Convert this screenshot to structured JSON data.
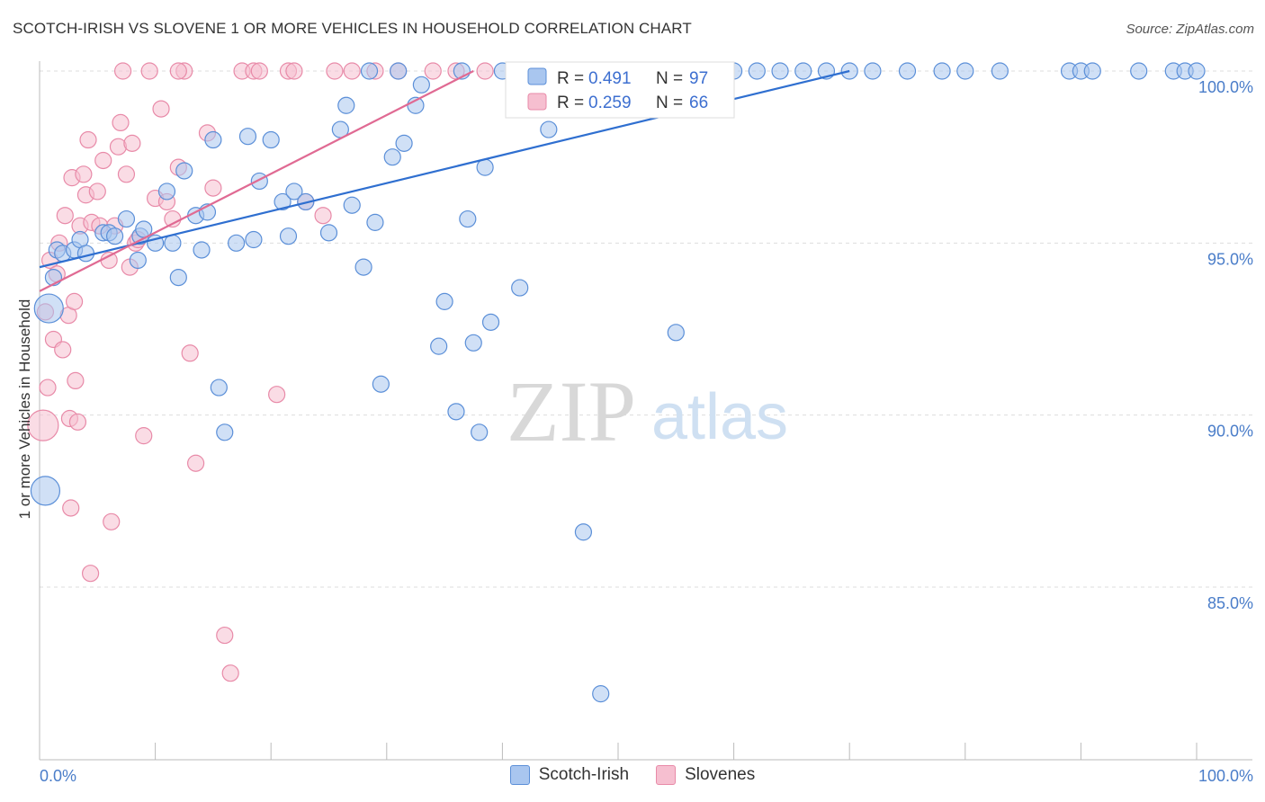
{
  "header": {
    "title": "SCOTCH-IRISH VS SLOVENE 1 OR MORE VEHICLES IN HOUSEHOLD CORRELATION CHART",
    "source": "Source: ZipAtlas.com"
  },
  "watermark": {
    "zip": "ZIP",
    "atlas": "atlas"
  },
  "colors": {
    "scotch_fill": "#a9c6ef",
    "scotch_stroke": "#5b8fd8",
    "scotch_line": "#2f6fd0",
    "slovene_fill": "#f6bfd0",
    "slovene_stroke": "#e88aa8",
    "slovene_line": "#e06a93",
    "grid": "#dddddd",
    "axis": "#bbbbbb"
  },
  "chart_data": {
    "type": "scatter",
    "title": "SCOTCH-IRISH VS SLOVENE 1 OR MORE VEHICLES IN HOUSEHOLD CORRELATION CHART",
    "xlabel": "",
    "ylabel": "1 or more Vehicles in Household",
    "xlim": [
      0,
      100
    ],
    "ylim": [
      80.5,
      100.5
    ],
    "x_tick_labels": [
      "0.0%",
      "100.0%"
    ],
    "y_ticks": [
      100,
      95,
      90,
      85
    ],
    "y_tick_labels": [
      "100.0%",
      "95.0%",
      "90.0%",
      "85.0%"
    ],
    "legend": {
      "position": "top-center",
      "entries": [
        {
          "r_label": "R =",
          "r_value": "0.491",
          "n_label": "N =",
          "n_value": "97"
        },
        {
          "r_label": "R =",
          "r_value": "0.259",
          "n_label": "N =",
          "n_value": "66"
        }
      ]
    },
    "series": [
      {
        "name": "Scotch-Irish",
        "trend": [
          [
            0,
            94.3
          ],
          [
            70,
            100
          ]
        ],
        "points": [
          [
            0.5,
            87.8
          ],
          [
            0.8,
            93.1
          ],
          [
            1.2,
            94.0
          ],
          [
            1.5,
            94.8
          ],
          [
            2.0,
            94.7
          ],
          [
            3.0,
            94.8
          ],
          [
            3.5,
            95.1
          ],
          [
            4.0,
            94.7
          ],
          [
            5.5,
            95.3
          ],
          [
            6.0,
            95.3
          ],
          [
            6.5,
            95.2
          ],
          [
            7.5,
            95.7
          ],
          [
            8.5,
            94.5
          ],
          [
            8.7,
            95.2
          ],
          [
            9.0,
            95.4
          ],
          [
            10.0,
            95.0
          ],
          [
            11.0,
            96.5
          ],
          [
            11.5,
            95.0
          ],
          [
            12.0,
            94.0
          ],
          [
            12.5,
            97.1
          ],
          [
            13.5,
            95.8
          ],
          [
            14.0,
            94.8
          ],
          [
            14.5,
            95.9
          ],
          [
            15.0,
            98.0
          ],
          [
            15.5,
            90.8
          ],
          [
            16.0,
            89.5
          ],
          [
            17.0,
            95.0
          ],
          [
            18.0,
            98.1
          ],
          [
            18.5,
            95.1
          ],
          [
            19.0,
            96.8
          ],
          [
            20.0,
            98.0
          ],
          [
            21.0,
            96.2
          ],
          [
            21.5,
            95.2
          ],
          [
            22.0,
            96.5
          ],
          [
            23.0,
            96.2
          ],
          [
            25.0,
            95.3
          ],
          [
            26.0,
            98.3
          ],
          [
            26.5,
            99.0
          ],
          [
            27.0,
            96.1
          ],
          [
            28.0,
            94.3
          ],
          [
            29.0,
            95.6
          ],
          [
            29.5,
            90.9
          ],
          [
            30.5,
            97.5
          ],
          [
            31.5,
            97.9
          ],
          [
            32.5,
            99.0
          ],
          [
            33.0,
            99.6
          ],
          [
            34.5,
            92.0
          ],
          [
            35.0,
            93.3
          ],
          [
            36.0,
            90.1
          ],
          [
            37.0,
            95.7
          ],
          [
            37.5,
            92.1
          ],
          [
            38.0,
            89.5
          ],
          [
            38.5,
            97.2
          ],
          [
            39.0,
            92.7
          ],
          [
            40.0,
            100
          ],
          [
            41.5,
            93.7
          ],
          [
            44.0,
            98.3
          ],
          [
            45.5,
            98.9
          ],
          [
            46.0,
            100
          ],
          [
            47.0,
            86.6
          ],
          [
            47.5,
            100
          ],
          [
            48.0,
            100
          ],
          [
            48.5,
            81.9
          ],
          [
            49.0,
            100
          ],
          [
            50.0,
            100
          ],
          [
            51.0,
            100
          ],
          [
            52.0,
            100
          ],
          [
            53.0,
            100
          ],
          [
            54.5,
            100
          ],
          [
            55.0,
            92.4
          ],
          [
            56.0,
            100
          ],
          [
            57.0,
            100
          ],
          [
            58.0,
            100
          ],
          [
            59.0,
            100
          ],
          [
            60.0,
            100
          ],
          [
            62.0,
            100
          ],
          [
            64.0,
            100
          ],
          [
            66.0,
            100
          ],
          [
            68.0,
            100
          ],
          [
            70.0,
            100
          ],
          [
            72.0,
            100
          ],
          [
            75.0,
            100
          ],
          [
            78.0,
            100
          ],
          [
            80.0,
            100
          ],
          [
            83.0,
            100
          ],
          [
            89.0,
            100
          ],
          [
            90.0,
            100
          ],
          [
            91.0,
            100
          ],
          [
            95.0,
            100
          ],
          [
            98.0,
            100
          ],
          [
            99.0,
            100
          ],
          [
            100.0,
            100
          ],
          [
            36.5,
            100
          ],
          [
            41.0,
            100
          ],
          [
            43.0,
            100
          ],
          [
            31.0,
            100
          ],
          [
            28.5,
            100
          ]
        ]
      },
      {
        "name": "Slovenes",
        "trend": [
          [
            0,
            93.6
          ],
          [
            37.5,
            100
          ]
        ],
        "points": [
          [
            0.3,
            89.7
          ],
          [
            0.5,
            93.0
          ],
          [
            0.7,
            90.8
          ],
          [
            0.9,
            94.5
          ],
          [
            1.2,
            92.2
          ],
          [
            1.5,
            94.1
          ],
          [
            1.7,
            95.0
          ],
          [
            2.0,
            91.9
          ],
          [
            2.2,
            95.8
          ],
          [
            2.5,
            92.9
          ],
          [
            2.6,
            89.9
          ],
          [
            2.7,
            87.3
          ],
          [
            2.8,
            96.9
          ],
          [
            3.0,
            93.3
          ],
          [
            3.1,
            91.0
          ],
          [
            3.3,
            89.8
          ],
          [
            3.5,
            95.5
          ],
          [
            3.8,
            97.0
          ],
          [
            4.0,
            96.4
          ],
          [
            4.2,
            98.0
          ],
          [
            4.4,
            85.4
          ],
          [
            4.5,
            95.6
          ],
          [
            5.0,
            96.5
          ],
          [
            5.2,
            95.5
          ],
          [
            5.5,
            97.4
          ],
          [
            6.0,
            94.5
          ],
          [
            6.2,
            86.9
          ],
          [
            6.5,
            95.5
          ],
          [
            6.8,
            97.8
          ],
          [
            7.0,
            98.5
          ],
          [
            7.5,
            97.0
          ],
          [
            7.8,
            94.3
          ],
          [
            8.0,
            97.9
          ],
          [
            8.3,
            95.0
          ],
          [
            8.5,
            95.1
          ],
          [
            9.0,
            89.4
          ],
          [
            9.5,
            100
          ],
          [
            10.0,
            96.3
          ],
          [
            10.5,
            98.9
          ],
          [
            11.0,
            96.2
          ],
          [
            11.5,
            95.7
          ],
          [
            12.0,
            97.2
          ],
          [
            12.5,
            100
          ],
          [
            13.0,
            91.8
          ],
          [
            13.5,
            88.6
          ],
          [
            14.5,
            98.2
          ],
          [
            15.0,
            96.6
          ],
          [
            16.0,
            83.6
          ],
          [
            16.5,
            82.5
          ],
          [
            17.5,
            100
          ],
          [
            18.5,
            100
          ],
          [
            19.0,
            100
          ],
          [
            20.5,
            90.6
          ],
          [
            21.5,
            100
          ],
          [
            22.0,
            100
          ],
          [
            23.0,
            96.2
          ],
          [
            24.5,
            95.8
          ],
          [
            25.5,
            100
          ],
          [
            7.2,
            100
          ],
          [
            12.0,
            100
          ],
          [
            27.0,
            100
          ],
          [
            29.0,
            100
          ],
          [
            31.0,
            100
          ],
          [
            34.0,
            100
          ],
          [
            36.0,
            100
          ],
          [
            38.5,
            100
          ]
        ]
      }
    ]
  },
  "bottom_legend": [
    {
      "label": "Scotch-Irish"
    },
    {
      "label": "Slovenes"
    }
  ]
}
